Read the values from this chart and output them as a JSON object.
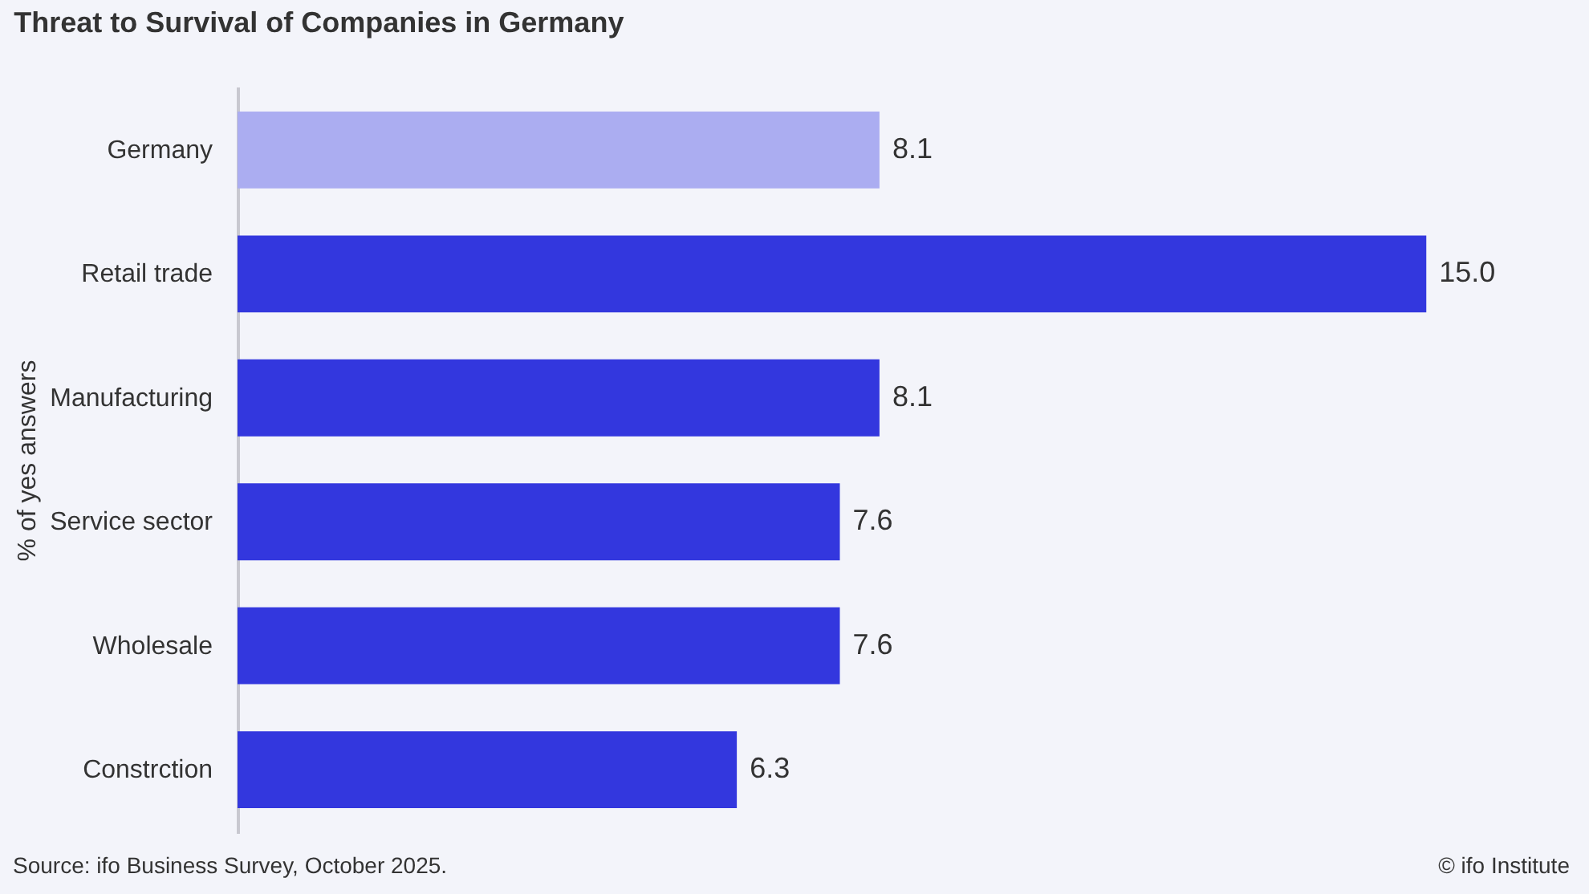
{
  "chart_data": {
    "type": "bar",
    "orientation": "horizontal",
    "title": "Threat to Survival of Companies in Germany",
    "ylabel": "% of yes answers",
    "categories": [
      "Germany",
      "Retail trade",
      "Manufacturing",
      "Service sector",
      "Wholesale",
      "Constrction"
    ],
    "values": [
      8.1,
      15.0,
      8.1,
      7.6,
      7.6,
      6.3
    ],
    "colors": [
      "#abadf1",
      "#3337de",
      "#3337de",
      "#3337de",
      "#3337de",
      "#3337de"
    ],
    "value_labels": [
      "8.1",
      "15.0",
      "8.1",
      "7.6",
      "7.6",
      "6.3"
    ],
    "annotations": [
      "Source: ifo Business Survey, October 2025.",
      "© ifo Institute"
    ]
  }
}
